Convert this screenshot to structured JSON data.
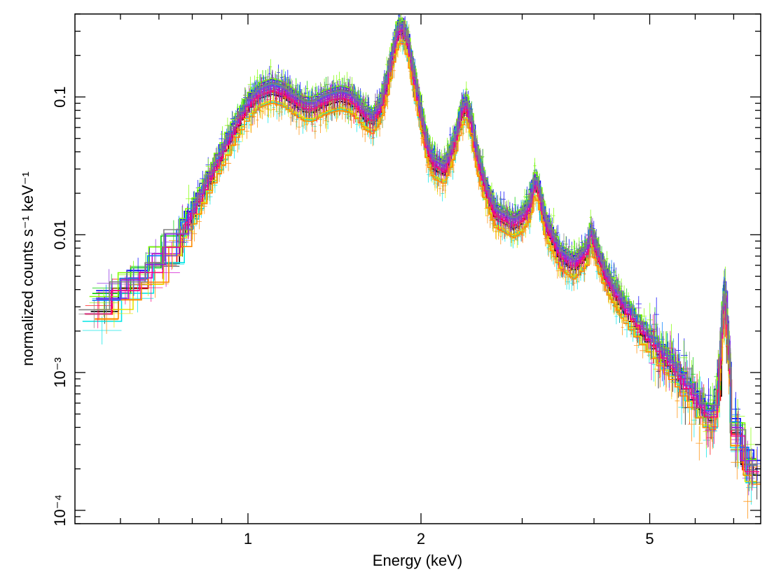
{
  "chart_data": {
    "type": "scatter",
    "title": "",
    "xlabel": "Energy (keV)",
    "ylabel": "normalized counts s⁻¹ keV⁻¹",
    "xscale": "log",
    "yscale": "log",
    "xlim": [
      0.5,
      7.8
    ],
    "ylim": [
      8e-05,
      0.4
    ],
    "x_ticks": [
      {
        "value": 1,
        "label": "1"
      },
      {
        "value": 2,
        "label": "2"
      },
      {
        "value": 5,
        "label": "5"
      }
    ],
    "y_ticks": [
      {
        "value": 0.0001,
        "label": "10⁻⁴"
      },
      {
        "value": 0.001,
        "label": "10⁻³"
      },
      {
        "value": 0.01,
        "label": "0.01"
      },
      {
        "value": 0.1,
        "label": "0.1"
      }
    ],
    "grid": false,
    "legend": "none",
    "series_colors": [
      "#000000",
      "#ff0000",
      "#00cc00",
      "#0000ff",
      "#00e5e5",
      "#cc00cc",
      "#e5e500",
      "#ff8c00",
      "#7fff00",
      "#0080ff",
      "#ff0080",
      "#8a2be2",
      "#808080"
    ],
    "series_scale": [
      1.0,
      1.04,
      1.22,
      1.28,
      0.88,
      1.1,
      0.9,
      0.86,
      1.3,
      1.18,
      1.06,
      1.15,
      1.2
    ],
    "model_curve": {
      "energy_keV": [
        0.5,
        0.6,
        0.7,
        0.8,
        0.9,
        0.95,
        1.0,
        1.05,
        1.1,
        1.15,
        1.2,
        1.25,
        1.3,
        1.35,
        1.4,
        1.45,
        1.5,
        1.55,
        1.6,
        1.65,
        1.7,
        1.75,
        1.8,
        1.83,
        1.86,
        1.9,
        1.95,
        2.0,
        2.05,
        2.1,
        2.2,
        2.3,
        2.35,
        2.4,
        2.45,
        2.5,
        2.6,
        2.7,
        2.8,
        2.9,
        3.0,
        3.1,
        3.15,
        3.2,
        3.3,
        3.5,
        3.7,
        3.9,
        3.95,
        4.0,
        4.2,
        4.5,
        5.0,
        5.5,
        6.0,
        6.3,
        6.5,
        6.6,
        6.7,
        6.75,
        6.8,
        7.0,
        7.5
      ],
      "counts": [
        0.0018,
        0.0035,
        0.0055,
        0.013,
        0.035,
        0.055,
        0.08,
        0.098,
        0.105,
        0.1,
        0.088,
        0.078,
        0.077,
        0.085,
        0.09,
        0.093,
        0.09,
        0.08,
        0.067,
        0.063,
        0.075,
        0.12,
        0.22,
        0.28,
        0.29,
        0.22,
        0.12,
        0.07,
        0.04,
        0.03,
        0.027,
        0.045,
        0.07,
        0.08,
        0.06,
        0.035,
        0.019,
        0.013,
        0.012,
        0.011,
        0.012,
        0.015,
        0.022,
        0.02,
        0.011,
        0.0065,
        0.0055,
        0.007,
        0.0095,
        0.008,
        0.0045,
        0.0028,
        0.0016,
        0.001,
        0.0006,
        0.00045,
        0.00045,
        0.0008,
        0.0025,
        0.0032,
        0.0025,
        0.0004,
        0.00018
      ]
    }
  }
}
